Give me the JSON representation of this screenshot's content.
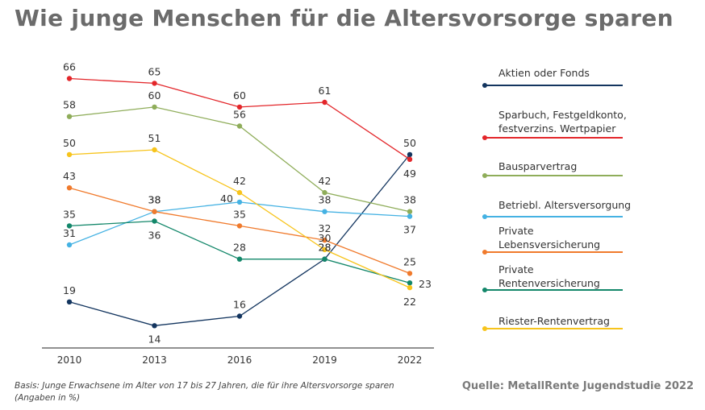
{
  "title": "Wie junge Menschen für die Altersvorsorge sparen",
  "footer": {
    "basis": "Basis: Junge Erwachsene im Alter von 17 bis 27 Jahren, die für ihre Altersvorsorge sparen (Angaben in %)",
    "source": "Quelle: MetallRente Jugendstudie 2022"
  },
  "chart_data": {
    "type": "line",
    "x": [
      "2010",
      "2013",
      "2016",
      "2019",
      "2022"
    ],
    "ylim": [
      10,
      70
    ],
    "grid": false,
    "legend": "right",
    "series": [
      {
        "name": "Aktien oder Fonds",
        "color": "#13355f",
        "values": [
          19,
          14,
          16,
          28,
          50
        ]
      },
      {
        "name": "Sparbuch, Festgeldkonto, festverzins. Wertpapier",
        "color": "#e3262a",
        "values": [
          66,
          65,
          60,
          61,
          49
        ]
      },
      {
        "name": "Bausparvertrag",
        "color": "#8fad5a",
        "values": [
          58,
          60,
          56,
          42,
          38
        ]
      },
      {
        "name": "Betriebl. Altersversorgung",
        "color": "#45b2e3",
        "values": [
          31,
          38,
          40,
          38,
          37
        ]
      },
      {
        "name": "Private Lebensversicherung",
        "color": "#f07a2c",
        "values": [
          43,
          38,
          35,
          32,
          25
        ]
      },
      {
        "name": "Private Rentenversicherung",
        "color": "#13876a",
        "values": [
          35,
          36,
          28,
          28,
          23
        ]
      },
      {
        "name": "Riester-Rentenvertrag",
        "color": "#f7c41c",
        "values": [
          50,
          51,
          42,
          30,
          22
        ]
      }
    ]
  }
}
